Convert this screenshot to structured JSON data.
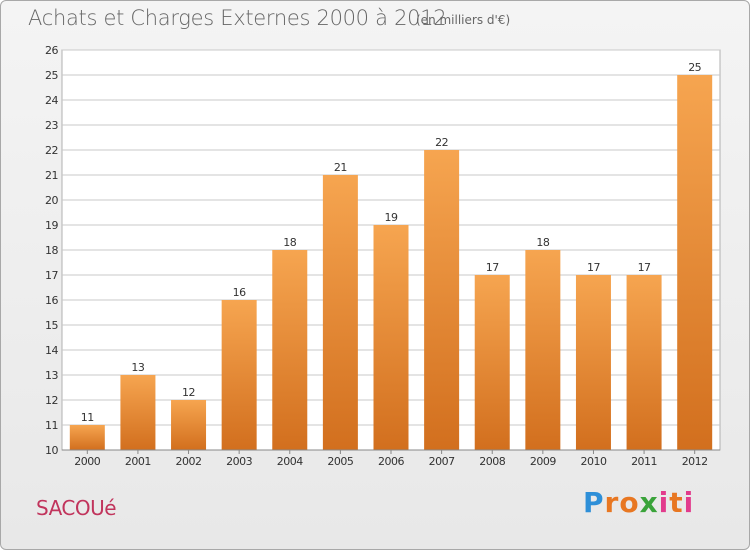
{
  "title": "Achats et Charges Externes 2000 à 2012",
  "subtitle": "(en milliers d'€)",
  "commune": "SACOUé",
  "logo": {
    "letters": [
      "P",
      "r",
      "o",
      "x",
      "i",
      "t",
      "i"
    ],
    "colors": [
      "#2e8fd8",
      "#e87722",
      "#e87722",
      "#3aa33a",
      "#e23b8c",
      "#e87722",
      "#e23b8c"
    ]
  },
  "colors": {
    "bar_top": "#f6a550",
    "bar_bottom": "#d26f1e",
    "grid": "#c8c8c8",
    "plot_bg": "#ffffff"
  },
  "chart_data": {
    "type": "bar",
    "categories": [
      "2000",
      "2001",
      "2002",
      "2003",
      "2004",
      "2005",
      "2006",
      "2007",
      "2008",
      "2009",
      "2010",
      "2011",
      "2012"
    ],
    "values": [
      11,
      13,
      12,
      16,
      18,
      21,
      19,
      22,
      17,
      18,
      17,
      17,
      25
    ],
    "ylim": [
      10,
      26
    ],
    "yticks": [
      10,
      11,
      12,
      13,
      14,
      15,
      16,
      17,
      18,
      19,
      20,
      21,
      22,
      23,
      24,
      25,
      26
    ],
    "grid": true
  }
}
